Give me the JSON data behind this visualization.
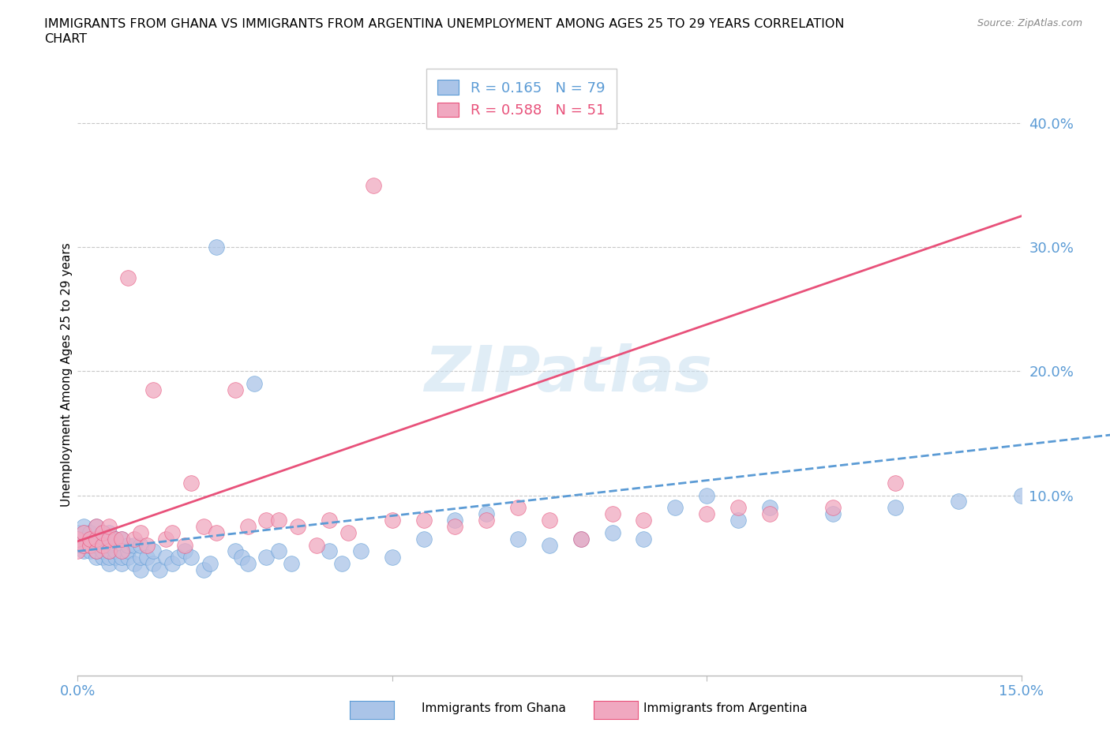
{
  "title_line1": "IMMIGRANTS FROM GHANA VS IMMIGRANTS FROM ARGENTINA UNEMPLOYMENT AMONG AGES 25 TO 29 YEARS CORRELATION",
  "title_line2": "CHART",
  "source_text": "Source: ZipAtlas.com",
  "ylabel": "Unemployment Among Ages 25 to 29 years",
  "ghana_R": "0.165",
  "ghana_N": "79",
  "argentina_R": "0.588",
  "argentina_N": "51",
  "ghana_color": "#aac4e8",
  "argentina_color": "#f0a8c0",
  "ghana_line_color": "#5b9bd5",
  "argentina_line_color": "#e8517a",
  "legend_label_ghana": "Immigrants from Ghana",
  "legend_label_argentina": "Immigrants from Argentina",
  "watermark": "ZIPatlas",
  "xlim": [
    0.0,
    0.15
  ],
  "ylim": [
    -0.045,
    0.44
  ],
  "ytick_color": "#5b9bd5",
  "xtick_color": "#5b9bd5",
  "ghana_x": [
    0.0,
    0.0,
    0.0,
    0.001,
    0.001,
    0.001,
    0.001,
    0.001,
    0.002,
    0.002,
    0.002,
    0.002,
    0.003,
    0.003,
    0.003,
    0.003,
    0.003,
    0.004,
    0.004,
    0.004,
    0.004,
    0.005,
    0.005,
    0.005,
    0.005,
    0.005,
    0.006,
    0.006,
    0.006,
    0.007,
    0.007,
    0.007,
    0.008,
    0.008,
    0.008,
    0.009,
    0.009,
    0.01,
    0.01,
    0.01,
    0.011,
    0.012,
    0.012,
    0.013,
    0.014,
    0.015,
    0.016,
    0.017,
    0.018,
    0.02,
    0.021,
    0.022,
    0.025,
    0.026,
    0.027,
    0.028,
    0.03,
    0.032,
    0.034,
    0.04,
    0.042,
    0.045,
    0.05,
    0.055,
    0.06,
    0.065,
    0.07,
    0.075,
    0.08,
    0.085,
    0.09,
    0.095,
    0.1,
    0.105,
    0.11,
    0.12,
    0.13,
    0.14,
    0.15
  ],
  "ghana_y": [
    0.06,
    0.065,
    0.07,
    0.055,
    0.06,
    0.065,
    0.07,
    0.075,
    0.055,
    0.06,
    0.065,
    0.07,
    0.05,
    0.055,
    0.06,
    0.065,
    0.075,
    0.05,
    0.055,
    0.065,
    0.07,
    0.045,
    0.05,
    0.055,
    0.06,
    0.07,
    0.05,
    0.055,
    0.065,
    0.045,
    0.05,
    0.065,
    0.05,
    0.055,
    0.06,
    0.045,
    0.06,
    0.04,
    0.05,
    0.06,
    0.05,
    0.045,
    0.055,
    0.04,
    0.05,
    0.045,
    0.05,
    0.055,
    0.05,
    0.04,
    0.045,
    0.3,
    0.055,
    0.05,
    0.045,
    0.19,
    0.05,
    0.055,
    0.045,
    0.055,
    0.045,
    0.055,
    0.05,
    0.065,
    0.08,
    0.085,
    0.065,
    0.06,
    0.065,
    0.07,
    0.065,
    0.09,
    0.1,
    0.08,
    0.09,
    0.085,
    0.09,
    0.095,
    0.1
  ],
  "argentina_x": [
    0.0,
    0.0,
    0.001,
    0.001,
    0.002,
    0.002,
    0.003,
    0.003,
    0.003,
    0.004,
    0.004,
    0.005,
    0.005,
    0.005,
    0.006,
    0.007,
    0.007,
    0.008,
    0.009,
    0.01,
    0.011,
    0.012,
    0.014,
    0.015,
    0.017,
    0.018,
    0.02,
    0.022,
    0.025,
    0.027,
    0.03,
    0.032,
    0.035,
    0.038,
    0.04,
    0.043,
    0.047,
    0.05,
    0.055,
    0.06,
    0.065,
    0.07,
    0.075,
    0.08,
    0.085,
    0.09,
    0.1,
    0.105,
    0.11,
    0.12,
    0.13
  ],
  "argentina_y": [
    0.055,
    0.065,
    0.06,
    0.07,
    0.06,
    0.065,
    0.055,
    0.065,
    0.075,
    0.06,
    0.07,
    0.055,
    0.065,
    0.075,
    0.065,
    0.055,
    0.065,
    0.275,
    0.065,
    0.07,
    0.06,
    0.185,
    0.065,
    0.07,
    0.06,
    0.11,
    0.075,
    0.07,
    0.185,
    0.075,
    0.08,
    0.08,
    0.075,
    0.06,
    0.08,
    0.07,
    0.35,
    0.08,
    0.08,
    0.075,
    0.08,
    0.09,
    0.08,
    0.065,
    0.085,
    0.08,
    0.085,
    0.09,
    0.085,
    0.09,
    0.11
  ],
  "ghana_line_x0": 0.0,
  "ghana_line_x1": 0.15,
  "ghana_line_y0": 0.055,
  "ghana_line_y1": 0.14,
  "argentina_line_x0": 0.0,
  "argentina_line_x1": 0.15,
  "argentina_line_y0": 0.063,
  "argentina_line_y1": 0.325
}
